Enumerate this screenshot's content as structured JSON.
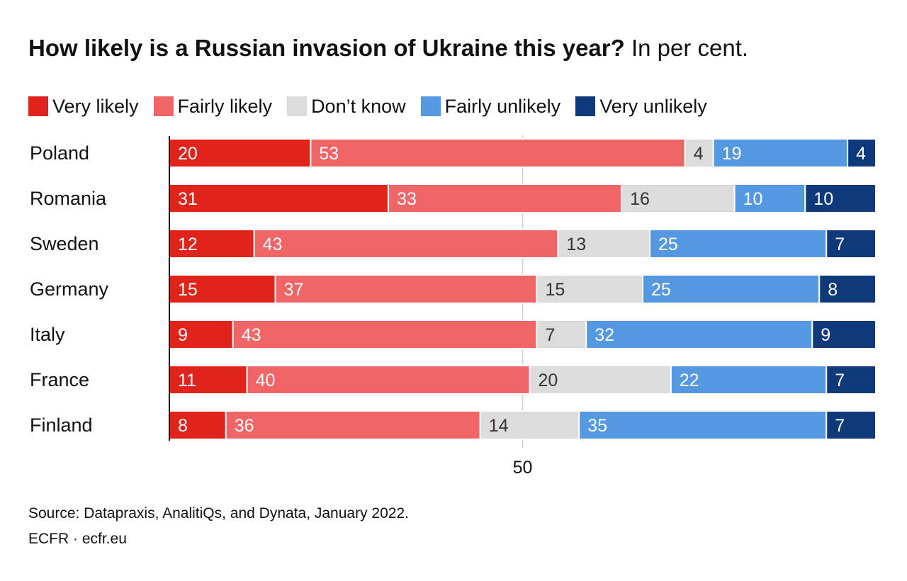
{
  "title": {
    "bold": "How likely is a Russian invasion of Ukraine this year?",
    "sub": "In per cent."
  },
  "legend": [
    {
      "label": "Very likely",
      "color": "#e0241b"
    },
    {
      "label": "Fairly likely",
      "color": "#f06565"
    },
    {
      "label": "Don’t know",
      "color": "#dcdcdc"
    },
    {
      "label": "Fairly unlikely",
      "color": "#5598e2"
    },
    {
      "label": "Very unlikely",
      "color": "#0e3a7b"
    }
  ],
  "chart_data": {
    "type": "bar",
    "orientation": "horizontal",
    "stacked": true,
    "categories": [
      "Poland",
      "Romania",
      "Sweden",
      "Germany",
      "Italy",
      "France",
      "Finland"
    ],
    "series": [
      {
        "name": "Very likely",
        "color": "#e0241b",
        "label_color": "#ffffff",
        "values": [
          20,
          31,
          12,
          15,
          9,
          11,
          8
        ]
      },
      {
        "name": "Fairly likely",
        "color": "#f06565",
        "label_color": "#ffffff",
        "values": [
          53,
          33,
          43,
          37,
          43,
          40,
          36
        ]
      },
      {
        "name": "Don’t know",
        "color": "#dcdcdc",
        "label_color": "#333333",
        "values": [
          4,
          16,
          13,
          15,
          7,
          20,
          14
        ]
      },
      {
        "name": "Fairly unlikely",
        "color": "#5598e2",
        "label_color": "#ffffff",
        "values": [
          19,
          10,
          25,
          25,
          32,
          22,
          35
        ]
      },
      {
        "name": "Very unlikely",
        "color": "#0e3a7b",
        "label_color": "#ffffff",
        "values": [
          4,
          10,
          7,
          8,
          9,
          7,
          7
        ]
      }
    ],
    "xlim": [
      0,
      100
    ],
    "xticks": [
      50
    ],
    "xtick_labels": [
      "50"
    ],
    "grid": true,
    "legend_position": "top"
  },
  "source": "Source: Datapraxis, AnalitiQs, and Dynata, January 2022.",
  "brand": "ECFR · ecfr.eu"
}
